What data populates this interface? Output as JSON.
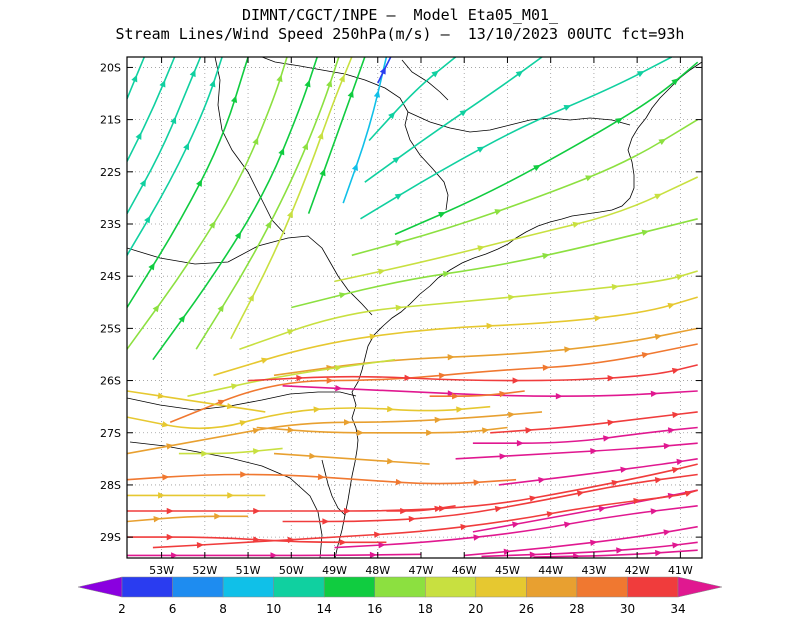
{
  "chart_data": {
    "type": "streamline",
    "title_line1": "DIMNT/CGCT/INPE –  Model Eta05_M01_",
    "title_line2": "Stream Lines/Wind Speed 250hPa(m/s) –  13/10/2023 00UTC fct=93h",
    "lon_range": [
      -53.8,
      -40.5
    ],
    "lat_range": [
      -29.4,
      -19.8
    ],
    "x_ticks": [
      "53W",
      "52W",
      "51W",
      "50W",
      "49W",
      "48W",
      "47W",
      "46W",
      "45W",
      "44W",
      "43W",
      "42W",
      "41W"
    ],
    "y_ticks": [
      "20S",
      "21S",
      "22S",
      "23S",
      "24S",
      "25S",
      "26S",
      "27S",
      "28S",
      "29S"
    ],
    "grid": true,
    "colorbar": {
      "labels": [
        "2",
        "6",
        "8",
        "10",
        "14",
        "16",
        "18",
        "20",
        "26",
        "28",
        "30",
        "34"
      ],
      "colors": [
        "#8a00e0",
        "#2a3cf0",
        "#1e8cf0",
        "#10c0e8",
        "#10d0a0",
        "#10cc40",
        "#8ce040",
        "#c8e040",
        "#e6c830",
        "#e8a030",
        "#f07830",
        "#f03c3c",
        "#e01890"
      ]
    },
    "streamlines": [
      {
        "speed": 13,
        "points": [
          [
            -53.8,
            -23.6
          ],
          [
            -52.8,
            -22.2
          ],
          [
            -52.0,
            -20.8
          ],
          [
            -51.6,
            -19.8
          ]
        ]
      },
      {
        "speed": 13,
        "points": [
          [
            -53.8,
            -22.8
          ],
          [
            -53.0,
            -21.6
          ],
          [
            -52.4,
            -20.4
          ],
          [
            -52.1,
            -19.8
          ]
        ]
      },
      {
        "speed": 13,
        "points": [
          [
            -53.8,
            -21.8
          ],
          [
            -53.2,
            -20.8
          ],
          [
            -52.7,
            -19.8
          ]
        ]
      },
      {
        "speed": 12,
        "points": [
          [
            -53.8,
            -20.6
          ],
          [
            -53.4,
            -19.8
          ]
        ]
      },
      {
        "speed": 15,
        "points": [
          [
            -53.8,
            -24.6
          ],
          [
            -52.6,
            -23.0
          ],
          [
            -51.6,
            -21.4
          ],
          [
            -51.0,
            -19.8
          ]
        ]
      },
      {
        "speed": 16,
        "points": [
          [
            -53.8,
            -25.4
          ],
          [
            -52.4,
            -23.8
          ],
          [
            -51.2,
            -22.2
          ],
          [
            -50.4,
            -20.6
          ],
          [
            -50.1,
            -19.8
          ]
        ]
      },
      {
        "speed": 15,
        "points": [
          [
            -53.2,
            -25.6
          ],
          [
            -51.8,
            -24.0
          ],
          [
            -50.6,
            -22.4
          ],
          [
            -49.8,
            -20.8
          ],
          [
            -49.4,
            -19.8
          ]
        ]
      },
      {
        "speed": 17,
        "points": [
          [
            -52.2,
            -25.4
          ],
          [
            -51.0,
            -23.8
          ],
          [
            -50.0,
            -22.2
          ],
          [
            -49.3,
            -20.8
          ],
          [
            -48.9,
            -19.8
          ]
        ]
      },
      {
        "speed": 18,
        "points": [
          [
            -51.4,
            -25.2
          ],
          [
            -50.4,
            -23.6
          ],
          [
            -49.6,
            -22.0
          ],
          [
            -49.0,
            -20.6
          ],
          [
            -48.6,
            -19.8
          ]
        ]
      },
      {
        "speed": 14,
        "points": [
          [
            -49.6,
            -22.8
          ],
          [
            -48.9,
            -21.2
          ],
          [
            -48.3,
            -19.8
          ]
        ]
      },
      {
        "speed": 9,
        "points": [
          [
            -48.8,
            -22.6
          ],
          [
            -48.2,
            -21.2
          ],
          [
            -47.8,
            -19.8
          ]
        ]
      },
      {
        "speed": 3,
        "points": [
          [
            -48.0,
            -20.3
          ],
          [
            -47.7,
            -19.8
          ]
        ]
      },
      {
        "speed": 10,
        "points": [
          [
            -48.2,
            -21.4
          ],
          [
            -47.1,
            -20.4
          ],
          [
            -46.2,
            -19.8
          ]
        ]
      },
      {
        "speed": 11,
        "points": [
          [
            -48.3,
            -22.2
          ],
          [
            -46.8,
            -21.3
          ],
          [
            -45.2,
            -20.4
          ],
          [
            -44.2,
            -19.8
          ]
        ]
      },
      {
        "speed": 13,
        "points": [
          [
            -48.4,
            -22.9
          ],
          [
            -46.6,
            -22.0
          ],
          [
            -44.6,
            -21.1
          ],
          [
            -42.6,
            -20.4
          ],
          [
            -41.2,
            -19.8
          ]
        ]
      },
      {
        "speed": 14,
        "points": [
          [
            -47.6,
            -23.2
          ],
          [
            -45.4,
            -22.4
          ],
          [
            -43.2,
            -21.4
          ],
          [
            -41.6,
            -20.6
          ],
          [
            -40.6,
            -19.9
          ]
        ]
      },
      {
        "speed": 16,
        "points": [
          [
            -48.6,
            -23.6
          ],
          [
            -46.4,
            -23.1
          ],
          [
            -44.0,
            -22.4
          ],
          [
            -42.2,
            -21.8
          ],
          [
            -40.6,
            -21.0
          ]
        ]
      },
      {
        "speed": 18,
        "points": [
          [
            -49.0,
            -24.1
          ],
          [
            -46.8,
            -23.7
          ],
          [
            -44.4,
            -23.2
          ],
          [
            -42.4,
            -22.8
          ],
          [
            -40.6,
            -22.1
          ]
        ]
      },
      {
        "speed": 17,
        "points": [
          [
            -50.0,
            -24.6
          ],
          [
            -47.6,
            -24.1
          ],
          [
            -45.2,
            -23.8
          ],
          [
            -43.0,
            -23.4
          ],
          [
            -40.6,
            -22.9
          ]
        ]
      },
      {
        "speed": 19,
        "points": [
          [
            -51.2,
            -25.4
          ],
          [
            -48.8,
            -24.7
          ],
          [
            -46.2,
            -24.5
          ],
          [
            -43.6,
            -24.3
          ],
          [
            -41.4,
            -24.1
          ],
          [
            -40.6,
            -23.9
          ]
        ]
      },
      {
        "speed": 20,
        "points": [
          [
            -51.8,
            -25.9
          ],
          [
            -49.4,
            -25.3
          ],
          [
            -46.8,
            -25.0
          ],
          [
            -44.0,
            -24.9
          ],
          [
            -41.8,
            -24.7
          ],
          [
            -40.6,
            -24.4
          ]
        ]
      },
      {
        "speed": 26,
        "points": [
          [
            -50.4,
            -25.9
          ],
          [
            -47.8,
            -25.6
          ],
          [
            -44.8,
            -25.5
          ],
          [
            -42.4,
            -25.3
          ],
          [
            -40.6,
            -25.0
          ]
        ]
      },
      {
        "speed": 18,
        "points": [
          [
            -52.4,
            -26.3
          ],
          [
            -50.2,
            -25.9
          ],
          [
            -47.6,
            -25.6
          ]
        ]
      },
      {
        "speed": 28,
        "points": [
          [
            -52.8,
            -26.8
          ],
          [
            -50.4,
            -26.0
          ],
          [
            -47.8,
            -26.0
          ],
          [
            -45.2,
            -25.8
          ],
          [
            -43.0,
            -25.7
          ],
          [
            -40.6,
            -25.3
          ]
        ]
      },
      {
        "speed": 30,
        "points": [
          [
            -51.0,
            -26.0
          ],
          [
            -48.6,
            -25.9
          ],
          [
            -46.0,
            -26.0
          ],
          [
            -43.6,
            -26.0
          ],
          [
            -41.6,
            -25.9
          ],
          [
            -40.6,
            -25.7
          ]
        ]
      },
      {
        "speed": 34,
        "points": [
          [
            -50.2,
            -26.1
          ],
          [
            -47.6,
            -26.2
          ],
          [
            -45.0,
            -26.3
          ],
          [
            -42.6,
            -26.3
          ],
          [
            -40.6,
            -26.2
          ]
        ]
      },
      {
        "speed": 24,
        "points": [
          [
            -53.8,
            -26.2
          ],
          [
            -52.2,
            -26.4
          ],
          [
            -50.6,
            -26.6
          ]
        ]
      },
      {
        "speed": 20,
        "points": [
          [
            -53.8,
            -26.7
          ],
          [
            -52.0,
            -27.0
          ],
          [
            -50.2,
            -26.6
          ],
          [
            -48.6,
            -26.5
          ],
          [
            -46.8,
            -26.6
          ],
          [
            -45.4,
            -26.5
          ]
        ]
      },
      {
        "speed": 26,
        "points": [
          [
            -53.8,
            -27.4
          ],
          [
            -51.8,
            -27.1
          ],
          [
            -49.8,
            -26.8
          ],
          [
            -47.6,
            -26.8
          ],
          [
            -45.6,
            -26.7
          ],
          [
            -44.2,
            -26.6
          ]
        ]
      },
      {
        "speed": 28,
        "points": [
          [
            -46.8,
            -26.3
          ],
          [
            -45.6,
            -26.3
          ],
          [
            -44.6,
            -26.2
          ]
        ]
      },
      {
        "speed": 26,
        "points": [
          [
            -50.8,
            -26.9
          ],
          [
            -49.2,
            -27.0
          ],
          [
            -47.6,
            -27.0
          ],
          [
            -46.0,
            -27.0
          ],
          [
            -45.0,
            -26.9
          ]
        ]
      },
      {
        "speed": 32,
        "points": [
          [
            -45.4,
            -27.0
          ],
          [
            -43.6,
            -26.9
          ],
          [
            -41.6,
            -26.7
          ],
          [
            -40.6,
            -26.6
          ]
        ]
      },
      {
        "speed": 34,
        "points": [
          [
            -45.8,
            -27.2
          ],
          [
            -43.6,
            -27.2
          ],
          [
            -41.8,
            -27.0
          ],
          [
            -40.6,
            -26.9
          ]
        ]
      },
      {
        "speed": 18,
        "points": [
          [
            -52.6,
            -27.4
          ],
          [
            -51.4,
            -27.4
          ],
          [
            -50.2,
            -27.3
          ]
        ]
      },
      {
        "speed": 26,
        "points": [
          [
            -50.4,
            -27.4
          ],
          [
            -48.6,
            -27.5
          ],
          [
            -46.8,
            -27.6
          ]
        ]
      },
      {
        "speed": 34,
        "points": [
          [
            -46.2,
            -27.5
          ],
          [
            -44.0,
            -27.4
          ],
          [
            -42.0,
            -27.3
          ],
          [
            -40.6,
            -27.2
          ]
        ]
      },
      {
        "speed": 28,
        "points": [
          [
            -53.8,
            -27.9
          ],
          [
            -52.0,
            -27.8
          ],
          [
            -50.2,
            -27.8
          ],
          [
            -48.4,
            -27.9
          ],
          [
            -46.6,
            -28.0
          ],
          [
            -44.8,
            -27.9
          ]
        ]
      },
      {
        "speed": 34,
        "points": [
          [
            -45.2,
            -28.0
          ],
          [
            -43.2,
            -27.8
          ],
          [
            -41.4,
            -27.6
          ],
          [
            -40.6,
            -27.5
          ]
        ]
      },
      {
        "speed": 24,
        "points": [
          [
            -53.8,
            -28.2
          ],
          [
            -52.2,
            -28.2
          ],
          [
            -50.6,
            -28.2
          ]
        ]
      },
      {
        "speed": 30,
        "points": [
          [
            -53.8,
            -28.5
          ],
          [
            -51.8,
            -28.5
          ],
          [
            -49.8,
            -28.5
          ],
          [
            -47.6,
            -28.5
          ],
          [
            -45.4,
            -28.4
          ],
          [
            -43.4,
            -28.1
          ],
          [
            -41.6,
            -27.8
          ],
          [
            -40.6,
            -27.6
          ]
        ]
      },
      {
        "speed": 26,
        "points": [
          [
            -53.8,
            -28.7
          ],
          [
            -52.4,
            -28.6
          ],
          [
            -51.0,
            -28.6
          ]
        ]
      },
      {
        "speed": 32,
        "points": [
          [
            -50.2,
            -28.7
          ],
          [
            -48.2,
            -28.7
          ],
          [
            -46.2,
            -28.6
          ],
          [
            -44.2,
            -28.3
          ],
          [
            -42.4,
            -28.0
          ],
          [
            -40.6,
            -27.8
          ]
        ]
      },
      {
        "speed": 33,
        "points": [
          [
            -47.8,
            -28.5
          ],
          [
            -47.0,
            -28.5
          ],
          [
            -46.2,
            -28.4
          ]
        ]
      },
      {
        "speed": 34,
        "points": [
          [
            -45.8,
            -28.9
          ],
          [
            -43.8,
            -28.6
          ],
          [
            -41.8,
            -28.3
          ],
          [
            -40.6,
            -28.1
          ]
        ]
      },
      {
        "speed": 30,
        "points": [
          [
            -53.8,
            -29.0
          ],
          [
            -51.8,
            -29.0
          ],
          [
            -49.8,
            -29.1
          ],
          [
            -47.8,
            -29.1
          ]
        ]
      },
      {
        "speed": 32,
        "points": [
          [
            -53.2,
            -29.2
          ],
          [
            -51.0,
            -29.1
          ],
          [
            -49.0,
            -29.0
          ],
          [
            -47.0,
            -28.9
          ],
          [
            -45.0,
            -28.7
          ],
          [
            -43.0,
            -28.4
          ],
          [
            -41.0,
            -28.2
          ],
          [
            -40.6,
            -28.1
          ]
        ]
      },
      {
        "speed": 34,
        "points": [
          [
            -49.0,
            -29.2
          ],
          [
            -46.8,
            -29.1
          ],
          [
            -44.6,
            -28.9
          ],
          [
            -42.6,
            -28.6
          ],
          [
            -40.6,
            -28.4
          ]
        ]
      },
      {
        "speed": 34,
        "points": [
          [
            -53.8,
            -29.35
          ],
          [
            -51.6,
            -29.35
          ],
          [
            -49.2,
            -29.35
          ],
          [
            -47.0,
            -29.33
          ]
        ]
      },
      {
        "speed": 34,
        "points": [
          [
            -46.0,
            -29.35
          ],
          [
            -44.0,
            -29.2
          ],
          [
            -42.0,
            -29.0
          ],
          [
            -40.6,
            -28.8
          ]
        ]
      },
      {
        "speed": 34,
        "points": [
          [
            -45.6,
            -29.37
          ],
          [
            -43.2,
            -29.3
          ],
          [
            -41.6,
            -29.2
          ],
          [
            -40.6,
            -29.1
          ]
        ]
      },
      {
        "speed": 34,
        "points": [
          [
            -44.4,
            -29.38
          ],
          [
            -42.4,
            -29.35
          ],
          [
            -40.6,
            -29.25
          ]
        ]
      }
    ]
  }
}
